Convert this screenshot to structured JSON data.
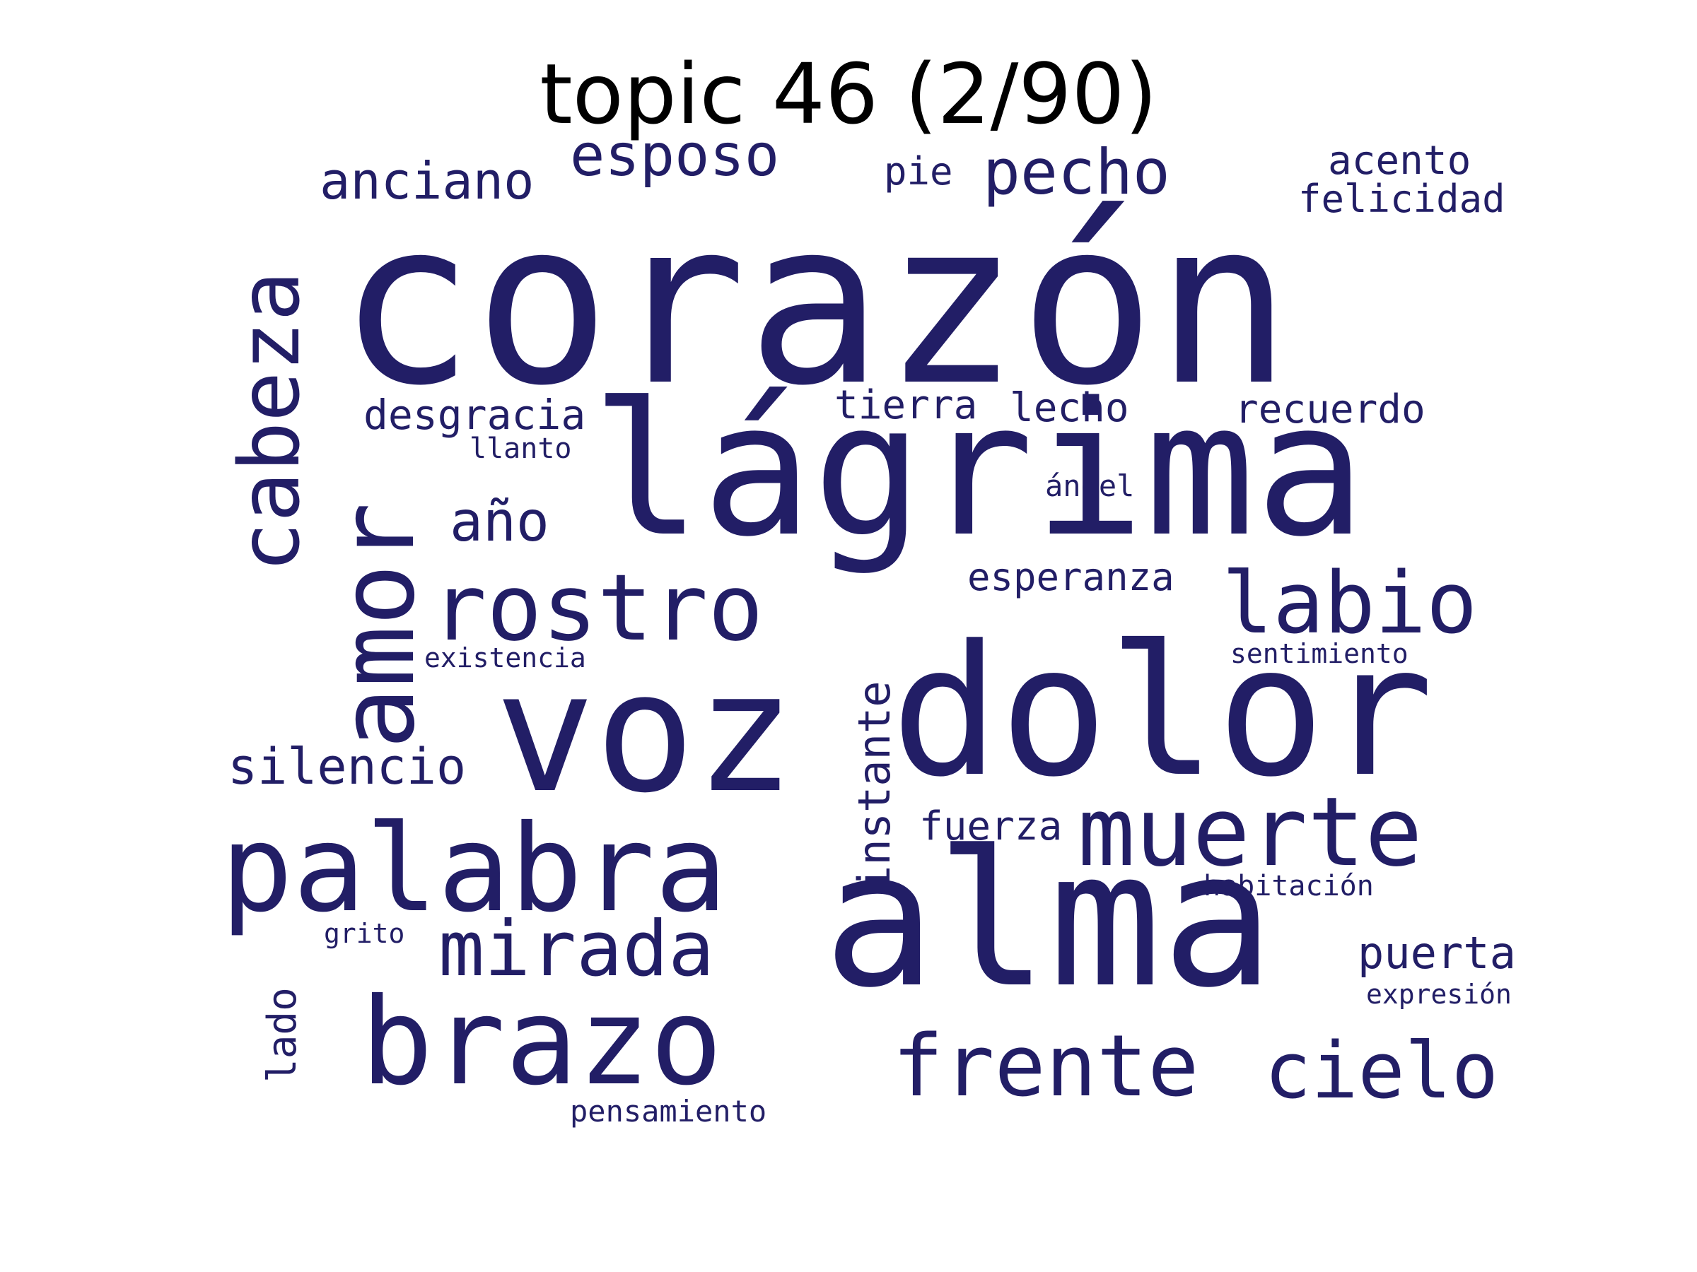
{
  "title": "topic 46 (2/90)",
  "colors": {
    "word": "#221e66",
    "title": "#000000",
    "background": "#ffffff"
  },
  "words": [
    "corazón",
    "lágrima",
    "alma",
    "dolor",
    "voz",
    "amor",
    "palabra",
    "cabeza",
    "brazo",
    "rostro",
    "muerte",
    "labio",
    "mirada",
    "frente",
    "cielo",
    "pecho",
    "esposo",
    "anciano",
    "instante",
    "silencio",
    "año",
    "desgracia",
    "tierra",
    "lecho",
    "recuerdo",
    "acento",
    "felicidad",
    "pie",
    "esperanza",
    "puerta",
    "fuerza",
    "lado",
    "llanto",
    "ángel",
    "existencia",
    "sentimiento",
    "habitación",
    "grito",
    "expresión",
    "pensamiento"
  ]
}
